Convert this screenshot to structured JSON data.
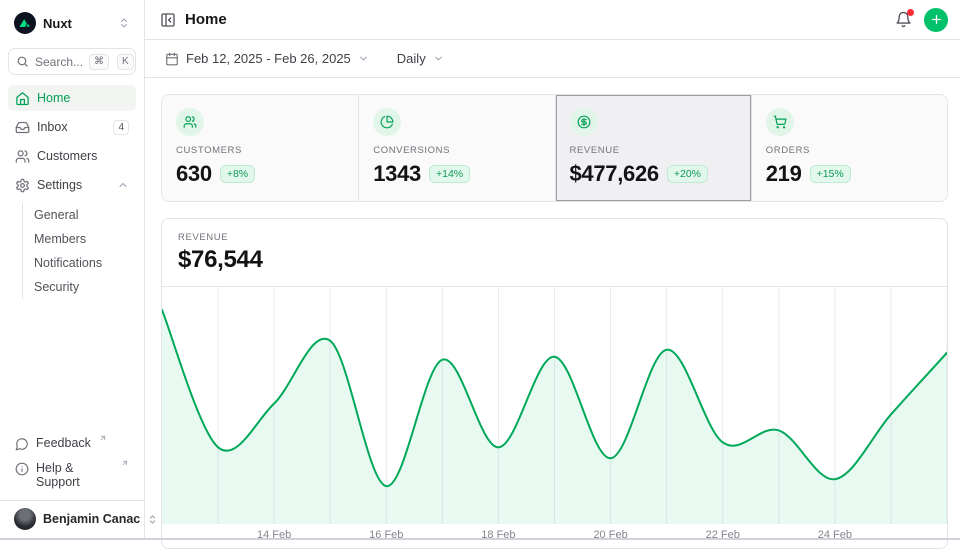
{
  "sidebar": {
    "workspace": {
      "name": "Nuxt"
    },
    "search": {
      "placeholder": "Search...",
      "kbd1": "⌘",
      "kbd2": "K"
    },
    "nav": [
      {
        "label": "Home",
        "active": true
      },
      {
        "label": "Inbox",
        "badge": "4"
      },
      {
        "label": "Customers"
      },
      {
        "label": "Settings",
        "expanded": true,
        "children": [
          "General",
          "Members",
          "Notifications",
          "Security"
        ]
      }
    ],
    "footer_links": [
      {
        "label": "Feedback"
      },
      {
        "label": "Help & Support"
      }
    ],
    "user": {
      "name": "Benjamin Canac"
    }
  },
  "header": {
    "title": "Home"
  },
  "toolbar": {
    "date_range": "Feb 12, 2025 - Feb 26, 2025",
    "period": "Daily"
  },
  "stats": [
    {
      "label": "Customers",
      "value": "630",
      "delta": "+8%",
      "selected": false
    },
    {
      "label": "Conversions",
      "value": "1343",
      "delta": "+14%",
      "selected": false
    },
    {
      "label": "Revenue",
      "value": "$477,626",
      "delta": "+20%",
      "selected": true
    },
    {
      "label": "Orders",
      "value": "219",
      "delta": "+15%",
      "selected": false
    }
  ],
  "chart": {
    "label": "Revenue",
    "value": "$76,544"
  },
  "chart_data": {
    "type": "area",
    "title": "Revenue (Feb 12, 2025 - Feb 26, 2025, daily)",
    "x": [
      "Feb 12",
      "Feb 13",
      "Feb 14",
      "Feb 15",
      "Feb 16",
      "Feb 17",
      "Feb 18",
      "Feb 19",
      "Feb 20",
      "Feb 21",
      "Feb 22",
      "Feb 23",
      "Feb 24",
      "Feb 25",
      "Feb 26"
    ],
    "values": [
      215,
      77,
      121,
      184,
      38,
      165,
      77,
      168,
      66,
      175,
      82,
      94,
      45,
      110,
      172
    ],
    "ylim": [
      0,
      238
    ],
    "x_tick_labels": [
      "14 Feb",
      "16 Feb",
      "18 Feb",
      "20 Feb",
      "22 Feb",
      "24 Feb"
    ],
    "x_tick_indices": [
      2,
      4,
      6,
      8,
      10,
      12
    ],
    "grid": "vertical",
    "legend": "none",
    "line_color": "#00a859",
    "fill_color": "rgba(0,193,106,0.09)",
    "grid_color": "#ececef"
  },
  "colors": {
    "accent_green": "#00c16a",
    "green_text": "#00a155",
    "notification_red": "#fb2c36",
    "border": "#e4e4e7",
    "muted_text": "#71717a"
  }
}
